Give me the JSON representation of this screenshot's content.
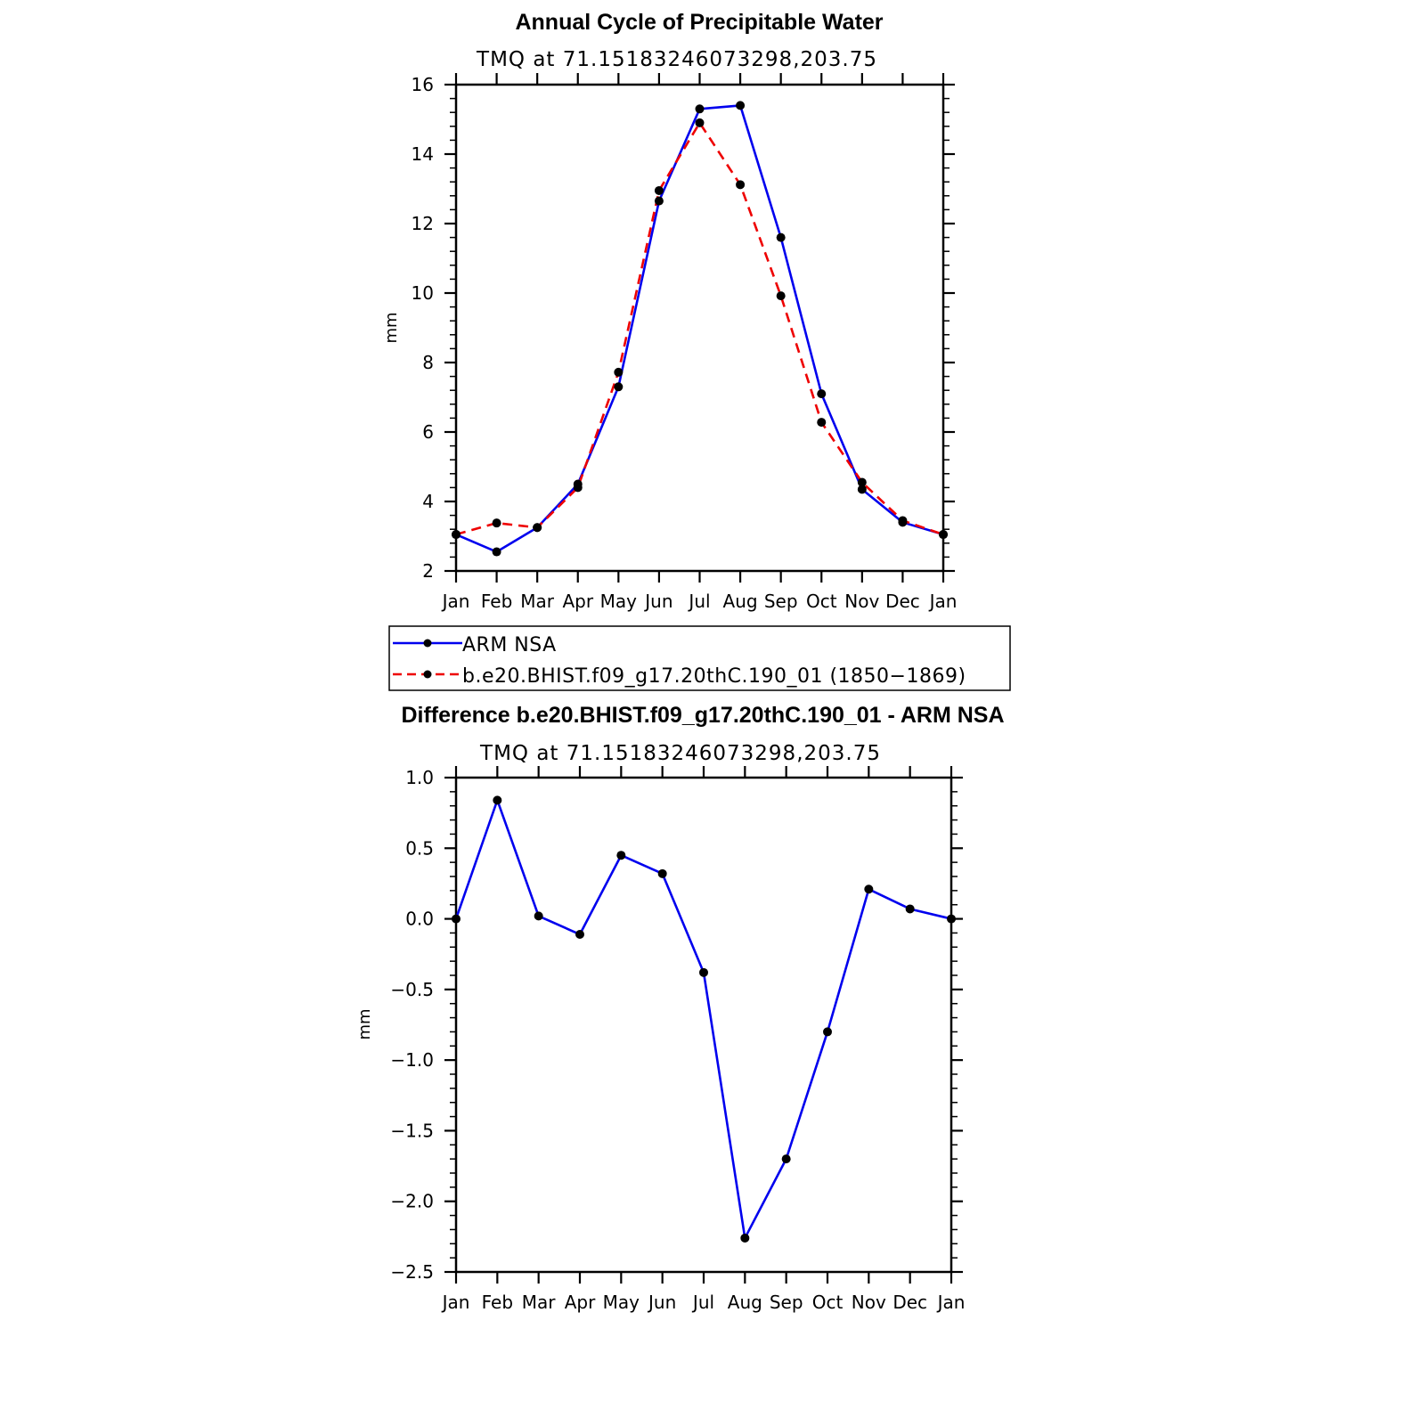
{
  "chart_data": [
    {
      "type": "line",
      "title": "Annual Cycle of Precipitable Water",
      "subtitle": "TMQ  at  71.15183246073298,203.75",
      "ylabel": "mm",
      "ylim": [
        2,
        16
      ],
      "yticks": [
        "2",
        "4",
        "6",
        "8",
        "10",
        "12",
        "14",
        "16"
      ],
      "categories": [
        "Jan",
        "Feb",
        "Mar",
        "Apr",
        "May",
        "Jun",
        "Jul",
        "Aug",
        "Sep",
        "Oct",
        "Nov",
        "Dec",
        "Jan"
      ],
      "series": [
        {
          "name": "ARM  NSA",
          "color": "#0000ee",
          "style": "solid",
          "values": [
            3.05,
            2.55,
            3.25,
            4.5,
            7.3,
            12.65,
            15.3,
            15.4,
            11.6,
            7.1,
            4.35,
            3.4,
            3.05
          ]
        },
        {
          "name": "b.e20.BHIST.f09_g17.20thC.190_01 (1850−1869)",
          "color": "#ee0000",
          "style": "dashed",
          "values": [
            3.05,
            3.38,
            3.25,
            4.4,
            7.72,
            12.95,
            14.9,
            13.12,
            9.92,
            6.28,
            4.55,
            3.45,
            3.05
          ]
        }
      ],
      "legend_position": "bottom"
    },
    {
      "type": "line",
      "title": "Difference b.e20.BHIST.f09_g17.20thC.190_01 - ARM NSA",
      "subtitle": "TMQ  at  71.15183246073298,203.75",
      "ylabel": "mm",
      "ylim": [
        -2.5,
        1.0
      ],
      "yticks": [
        "−2.5",
        "−2.0",
        "−1.5",
        "−1.0",
        "−0.5",
        "0.0",
        "0.5",
        "1.0"
      ],
      "categories": [
        "Jan",
        "Feb",
        "Mar",
        "Apr",
        "May",
        "Jun",
        "Jul",
        "Aug",
        "Sep",
        "Oct",
        "Nov",
        "Dec",
        "Jan"
      ],
      "series": [
        {
          "color": "#0000ee",
          "style": "solid",
          "values": [
            0.0,
            0.84,
            0.02,
            -0.11,
            0.45,
            0.32,
            -0.38,
            -2.26,
            -1.7,
            -0.8,
            0.21,
            0.07,
            0.0
          ]
        }
      ]
    }
  ]
}
